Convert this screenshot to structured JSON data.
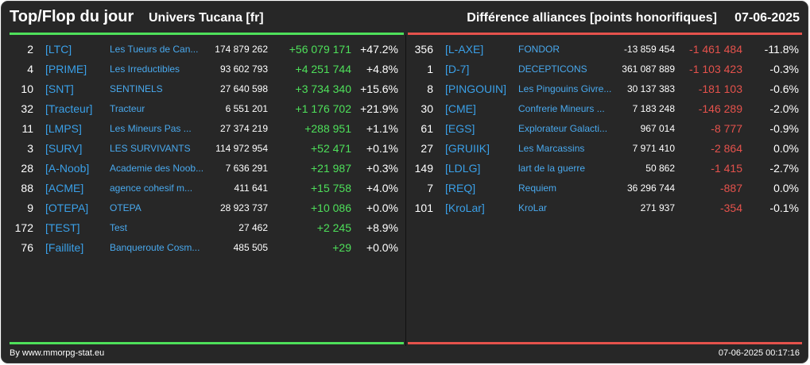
{
  "header": {
    "title": "Top/Flop du jour",
    "universe": "Univers Tucana [fr]",
    "metric": "Différence alliances [points honorifiques]",
    "date": "07-06-2025"
  },
  "colors": {
    "up": "#4ee05a",
    "down": "#e5524c",
    "tag": "#3aa0e8",
    "background": "#272727"
  },
  "top": [
    {
      "rank": "2",
      "tag": "[LTC]",
      "name": "Les Tueurs de Can...",
      "points": "174 879 262",
      "diff": "+56 079 171",
      "pct": "+47.2%"
    },
    {
      "rank": "4",
      "tag": "[PRIME]",
      "name": "Les Irreductibles",
      "points": "93 602 793",
      "diff": "+4 251 744",
      "pct": "+4.8%"
    },
    {
      "rank": "10",
      "tag": "[SNT]",
      "name": "SENTINELS",
      "points": "27 640 598",
      "diff": "+3 734 340",
      "pct": "+15.6%"
    },
    {
      "rank": "32",
      "tag": "[Tracteur]",
      "name": "Tracteur",
      "points": "6 551 201",
      "diff": "+1 176 702",
      "pct": "+21.9%"
    },
    {
      "rank": "11",
      "tag": "[LMPS]",
      "name": "Les Mineurs Pas ...",
      "points": "27 374 219",
      "diff": "+288 951",
      "pct": "+1.1%"
    },
    {
      "rank": "3",
      "tag": "[SURV]",
      "name": "LES SURVIVANTS",
      "points": "114 972 954",
      "diff": "+52 471",
      "pct": "+0.1%"
    },
    {
      "rank": "28",
      "tag": "[A-Noob]",
      "name": "Academie des Noob...",
      "points": "7 636 291",
      "diff": "+21 987",
      "pct": "+0.3%"
    },
    {
      "rank": "88",
      "tag": "[ACME]",
      "name": "agence cohesif m...",
      "points": "411 641",
      "diff": "+15 758",
      "pct": "+4.0%"
    },
    {
      "rank": "9",
      "tag": "[OTEPA]",
      "name": "OTEPA",
      "points": "28 923 737",
      "diff": "+10 086",
      "pct": "+0.0%"
    },
    {
      "rank": "172",
      "tag": "[TEST]",
      "name": "Test",
      "points": "27 462",
      "diff": "+2 245",
      "pct": "+8.9%"
    },
    {
      "rank": "76",
      "tag": "[Faillite]",
      "name": "Banqueroute Cosm...",
      "points": "485 505",
      "diff": "+29",
      "pct": "+0.0%"
    }
  ],
  "flop": [
    {
      "rank": "356",
      "tag": "[L-AXE]",
      "name": "FONDOR",
      "points": "-13 859 454",
      "diff": "-1 461 484",
      "pct": "-11.8%"
    },
    {
      "rank": "1",
      "tag": "[D-7]",
      "name": "DECEPTICONS",
      "points": "361 087 889",
      "diff": "-1 103 423",
      "pct": "-0.3%"
    },
    {
      "rank": "8",
      "tag": "[PINGOUIN]",
      "name": "Les Pingouins Givre...",
      "points": "30 137 383",
      "diff": "-181 103",
      "pct": "-0.6%"
    },
    {
      "rank": "30",
      "tag": "[CME]",
      "name": "Confrerie Mineurs ...",
      "points": "7 183 248",
      "diff": "-146 289",
      "pct": "-2.0%"
    },
    {
      "rank": "61",
      "tag": "[EGS]",
      "name": "Explorateur Galacti...",
      "points": "967 014",
      "diff": "-8 777",
      "pct": "-0.9%"
    },
    {
      "rank": "27",
      "tag": "[GRUIIK]",
      "name": "Les Marcassins",
      "points": "7 971 410",
      "diff": "-2 864",
      "pct": "0.0%"
    },
    {
      "rank": "149",
      "tag": "[LDLG]",
      "name": "lart de la guerre",
      "points": "50 862",
      "diff": "-1 415",
      "pct": "-2.7%"
    },
    {
      "rank": "7",
      "tag": "[REQ]",
      "name": "Requiem",
      "points": "36 296 744",
      "diff": "-887",
      "pct": "0.0%"
    },
    {
      "rank": "101",
      "tag": "[KroLar]",
      "name": "KroLar",
      "points": "271 937",
      "diff": "-354",
      "pct": "-0.1%"
    }
  ],
  "footer": {
    "credit": "By www.mmorpg-stat.eu",
    "timestamp": "07-06-2025 00:17:16"
  }
}
